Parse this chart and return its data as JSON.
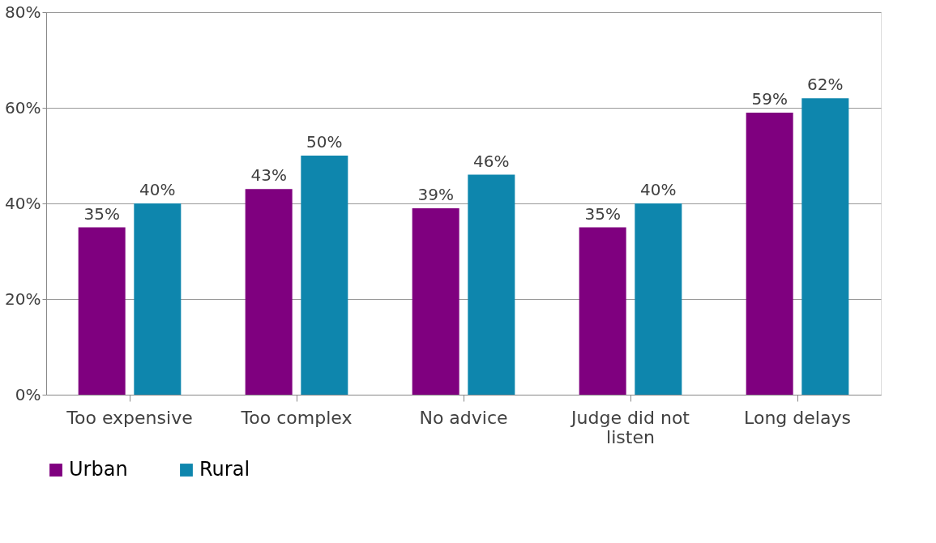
{
  "chart_data": {
    "type": "bar",
    "categories": [
      "Too expensive",
      "Too complex",
      "No advice",
      "Judge did not listen",
      "Long delays"
    ],
    "series": [
      {
        "name": "Urban",
        "color": "#7f007f",
        "values": [
          35,
          43,
          39,
          35,
          59
        ],
        "value_labels": [
          "35%",
          "43%",
          "39%",
          "35%",
          "59%"
        ]
      },
      {
        "name": "Rural",
        "color": "#0e86ad",
        "values": [
          40,
          50,
          46,
          40,
          62
        ],
        "value_labels": [
          "40%",
          "50%",
          "46%",
          "40%",
          "62%"
        ]
      }
    ],
    "ylim": [
      0,
      80
    ],
    "yticks": [
      {
        "value": 0,
        "label": "0%"
      },
      {
        "value": 20,
        "label": "20%"
      },
      {
        "value": 40,
        "label": "40%"
      },
      {
        "value": 60,
        "label": "60%"
      },
      {
        "value": 80,
        "label": "80%"
      }
    ],
    "grid": "y",
    "legend": "bottom"
  }
}
